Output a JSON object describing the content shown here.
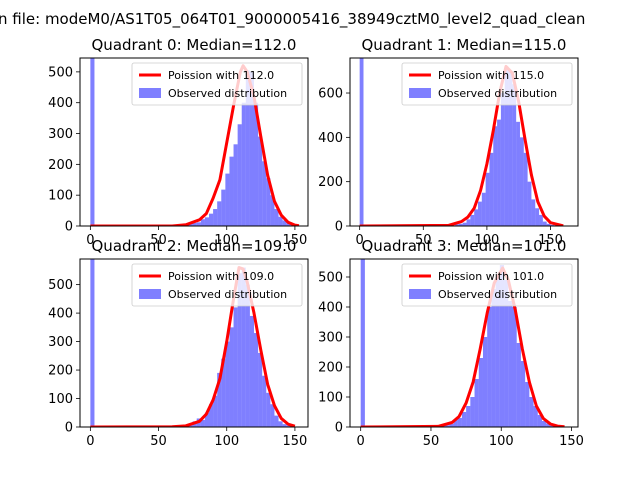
{
  "figure": {
    "suptitle": "n file: modeM0/AS1T05_064T01_9000005416_38949cztM0_level2_quad_clean"
  },
  "colors": {
    "model": "#ff0000",
    "hist": "#0000ff",
    "hist_opacity": 0.5
  },
  "chart_data": [
    {
      "type": "bar",
      "title": "Quadrant 0: Median=112.0",
      "median": 112,
      "xlim": [
        -7.6,
        159.6
      ],
      "ylim": [
        0,
        545
      ],
      "xticks": [
        0,
        50,
        100,
        150
      ],
      "yticks": [
        0,
        100,
        200,
        300,
        400,
        500
      ],
      "legend": {
        "position": "upper-right",
        "entries": [
          "Poission with 112.0",
          "Observed distribution"
        ]
      },
      "series": [
        {
          "name": "Observed distribution",
          "kind": "histogram",
          "bin_edges": [
            0,
            3,
            63,
            66,
            69,
            72,
            75,
            78,
            81,
            84,
            87,
            90,
            93,
            96,
            99,
            102,
            105,
            108,
            111,
            114,
            117,
            120,
            123,
            126,
            129,
            132,
            135,
            138,
            141,
            144,
            147,
            150,
            153
          ],
          "counts": [
            545,
            0,
            2,
            4,
            5,
            8,
            10,
            12,
            22,
            28,
            40,
            55,
            80,
            118,
            170,
            225,
            265,
            330,
            400,
            505,
            500,
            400,
            290,
            210,
            155,
            100,
            55,
            30,
            18,
            8,
            4,
            2
          ]
        },
        {
          "name": "Poission with 112.0",
          "kind": "line",
          "x": [
            0,
            60,
            70,
            80,
            85,
            90,
            95,
            100,
            105,
            110,
            112,
            115,
            120,
            125,
            130,
            135,
            140,
            145,
            150,
            153
          ],
          "y": [
            0,
            0,
            4,
            20,
            40,
            90,
            150,
            270,
            390,
            500,
            520,
            500,
            420,
            290,
            165,
            80,
            35,
            12,
            3,
            1
          ]
        }
      ]
    },
    {
      "type": "bar",
      "title": "Quadrant 1: Median=115.0",
      "median": 115,
      "xlim": [
        -7.6,
        171.6
      ],
      "ylim": [
        0,
        758
      ],
      "xticks": [
        0,
        50,
        100,
        150
      ],
      "yticks": [
        0,
        200,
        400,
        600
      ],
      "legend": {
        "position": "upper-right",
        "entries": [
          "Poission with 115.0",
          "Observed distribution"
        ]
      },
      "series": [
        {
          "name": "Observed distribution",
          "kind": "histogram",
          "bin_edges": [
            0,
            3,
            72,
            75,
            78,
            81,
            84,
            87,
            90,
            93,
            96,
            99,
            102,
            105,
            108,
            111,
            114,
            117,
            120,
            123,
            126,
            129,
            132,
            135,
            138,
            141,
            144,
            147,
            150,
            153,
            156
          ],
          "counts": [
            758,
            0,
            3,
            8,
            10,
            15,
            30,
            50,
            75,
            110,
            150,
            240,
            330,
            450,
            480,
            600,
            720,
            700,
            640,
            470,
            400,
            330,
            200,
            120,
            80,
            50,
            20,
            10,
            5,
            2
          ]
        },
        {
          "name": "Poission with 115.0",
          "kind": "line",
          "x": [
            0,
            70,
            80,
            85,
            90,
            95,
            100,
            105,
            110,
            115,
            120,
            125,
            130,
            135,
            140,
            145,
            150,
            160
          ],
          "y": [
            0,
            3,
            20,
            40,
            80,
            160,
            280,
            430,
            600,
            720,
            690,
            560,
            390,
            230,
            110,
            45,
            15,
            1
          ]
        }
      ]
    },
    {
      "type": "bar",
      "title": "Quadrant 2: Median=109.0",
      "median": 109,
      "xlim": [
        -7.6,
        159.6
      ],
      "ylim": [
        0,
        590
      ],
      "xticks": [
        0,
        50,
        100,
        150
      ],
      "yticks": [
        0,
        100,
        200,
        300,
        400,
        500
      ],
      "legend": {
        "position": "upper-right",
        "entries": [
          "Poission with 109.0",
          "Observed distribution"
        ]
      },
      "series": [
        {
          "name": "Observed distribution",
          "kind": "histogram",
          "bin_edges": [
            0,
            3,
            60,
            63,
            66,
            69,
            72,
            75,
            78,
            81,
            84,
            87,
            90,
            93,
            96,
            99,
            102,
            105,
            108,
            111,
            114,
            117,
            120,
            123,
            126,
            129,
            132,
            135,
            138,
            141,
            144,
            147,
            150
          ],
          "counts": [
            590,
            0,
            2,
            4,
            6,
            8,
            12,
            20,
            30,
            25,
            50,
            80,
            110,
            190,
            240,
            300,
            350,
            420,
            540,
            560,
            500,
            390,
            330,
            260,
            180,
            120,
            80,
            40,
            20,
            10,
            5,
            2
          ]
        },
        {
          "name": "Poission with 109.0",
          "kind": "line",
          "x": [
            0,
            60,
            70,
            80,
            85,
            90,
            95,
            100,
            105,
            109,
            112,
            115,
            120,
            125,
            130,
            135,
            140,
            145,
            150
          ],
          "y": [
            0,
            1,
            4,
            20,
            45,
            95,
            170,
            300,
            450,
            560,
            555,
            510,
            400,
            270,
            150,
            75,
            30,
            10,
            3
          ]
        }
      ]
    },
    {
      "type": "bar",
      "title": "Quadrant 3: Median=101.0",
      "median": 101,
      "xlim": [
        -7.6,
        154.6
      ],
      "ylim": [
        0,
        560
      ],
      "xticks": [
        0,
        50,
        100,
        150
      ],
      "yticks": [
        0,
        100,
        200,
        300,
        400,
        500
      ],
      "legend": {
        "position": "upper-right",
        "entries": [
          "Poission with 101.0",
          "Observed distribution"
        ]
      },
      "series": [
        {
          "name": "Observed distribution",
          "kind": "histogram",
          "bin_edges": [
            0,
            3,
            54,
            57,
            60,
            63,
            66,
            69,
            72,
            75,
            78,
            81,
            84,
            87,
            90,
            93,
            96,
            99,
            102,
            105,
            108,
            111,
            114,
            117,
            120,
            123,
            126,
            129,
            132,
            135,
            138,
            141,
            144
          ],
          "counts": [
            560,
            0,
            2,
            4,
            6,
            10,
            25,
            30,
            50,
            70,
            100,
            160,
            230,
            300,
            400,
            460,
            500,
            540,
            490,
            420,
            400,
            280,
            220,
            150,
            100,
            70,
            40,
            20,
            12,
            6,
            3,
            1
          ]
        },
        {
          "name": "Poission with 101.0",
          "kind": "line",
          "x": [
            0,
            55,
            65,
            70,
            75,
            80,
            85,
            90,
            95,
            101,
            105,
            110,
            115,
            120,
            125,
            130,
            135,
            140,
            145
          ],
          "y": [
            0,
            2,
            15,
            35,
            80,
            150,
            260,
            380,
            480,
            530,
            490,
            390,
            260,
            150,
            70,
            28,
            10,
            3,
            1
          ]
        }
      ]
    }
  ]
}
